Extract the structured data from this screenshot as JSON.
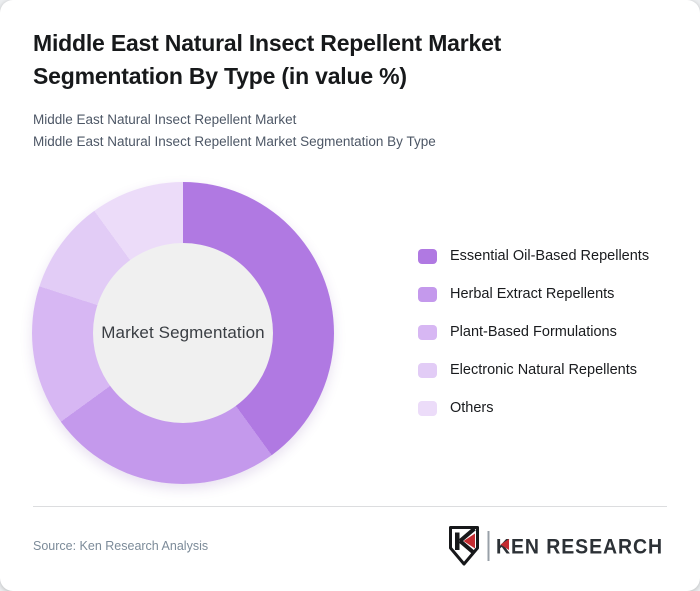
{
  "page": {
    "background_color": "#eceef0",
    "card_background": "#ffffff"
  },
  "header": {
    "title": "Middle East Natural Insect Repellent Market Segmentation By Type (in value %)",
    "subtitle_line1": "Middle East Natural Insect Repellent Market",
    "subtitle_line2": "Middle East Natural Insect Repellent Market Segmentation By Type"
  },
  "chart_data": {
    "type": "pie",
    "variant": "donut",
    "title": "Middle East Natural Insect Repellent Market Segmentation By Type (in value %)",
    "center_label": "Market Segmentation",
    "categories": [
      "Essential Oil-Based Repellents",
      "Herbal Extract Repellents",
      "Plant-Based Formulations",
      "Electronic Natural Repellents",
      "Others"
    ],
    "values": [
      40,
      25,
      15,
      10,
      10
    ],
    "colors": [
      "#b079e2",
      "#c499ec",
      "#d7b7f3",
      "#e2ccf6",
      "#ecdcf9"
    ],
    "hole_color": "#f0f0f0",
    "start_angle_deg": 0,
    "direction": "clockwise",
    "donut_hole_ratio": 0.59,
    "legend_position": "right",
    "data_labels_shown": false
  },
  "footer": {
    "source": "Source: Ken Research Analysis",
    "logo": {
      "monogram": "K",
      "wordmark": "KEN RESEARCH",
      "accent_color": "#c42c31",
      "text_color": "#2c3136"
    }
  }
}
